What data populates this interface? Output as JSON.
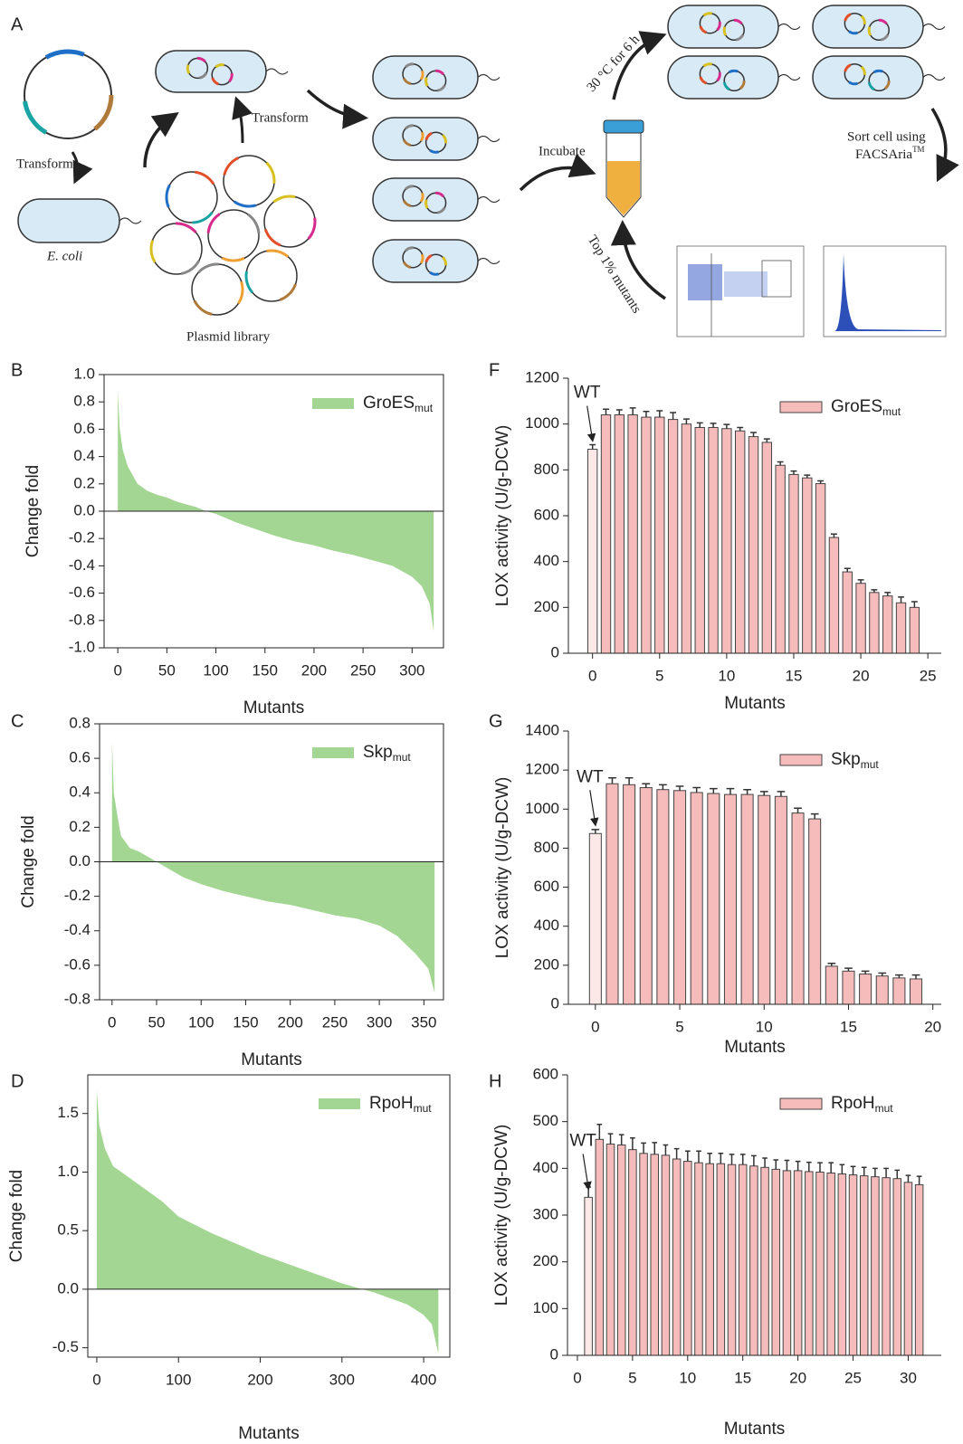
{
  "diagram": {
    "panel_label": "A",
    "transform_1": "Transform",
    "host": "E. coli",
    "transform_2": "Transform",
    "library": "Plasmid library",
    "incubate": "Incubate",
    "culture": "30 °C for 6 h",
    "sort_line1": "Sort cell using",
    "sort_line2": "FACSAria",
    "sort_trademark": "TM",
    "select": "Top 1% mutants"
  },
  "chart_data": [
    {
      "type": "area",
      "panel_label": "B",
      "xlabel": "Mutants",
      "ylabel": "Change fold",
      "x": [
        0,
        2,
        5,
        10,
        20,
        30,
        40,
        50,
        60,
        70,
        80,
        90,
        100,
        120,
        140,
        160,
        180,
        200,
        220,
        240,
        260,
        280,
        300,
        310,
        318,
        322
      ],
      "series": [
        {
          "name": "GroES",
          "name_subscript": "mut",
          "color": "#a3d693",
          "values": [
            0.88,
            0.6,
            0.45,
            0.33,
            0.2,
            0.15,
            0.12,
            0.1,
            0.07,
            0.05,
            0.03,
            0.0,
            -0.02,
            -0.08,
            -0.13,
            -0.18,
            -0.22,
            -0.25,
            -0.29,
            -0.32,
            -0.36,
            -0.4,
            -0.48,
            -0.55,
            -0.68,
            -0.88
          ]
        }
      ],
      "xlim": [
        -14,
        332
      ],
      "xticks": [
        0,
        50,
        100,
        150,
        200,
        250,
        300
      ],
      "ylim": [
        -1.0,
        1.0
      ],
      "yticks": [
        {
          "value": -1.0,
          "label": "-1.0"
        },
        -0.8,
        -0.6,
        -0.4,
        -0.2,
        {
          "value": 0.0,
          "label": "0.0"
        },
        0.2,
        0.4,
        0.6,
        0.8,
        {
          "value": 1.0,
          "label": "1.0"
        }
      ],
      "legend": "upper right"
    },
    {
      "type": "bar",
      "panel_label": "F",
      "xlabel": "Mutants",
      "ylabel": "LOX activity (U/g-DCW)",
      "annotation": "WT",
      "x": [
        0,
        1,
        2,
        3,
        4,
        5,
        6,
        7,
        8,
        9,
        10,
        11,
        12,
        13,
        14,
        15,
        16,
        17,
        18,
        19,
        20,
        21,
        22,
        23,
        24
      ],
      "series": [
        {
          "name": "GroES",
          "name_subscript": "mut",
          "color": "#f6bcbc",
          "values": [
            890,
            1040,
            1040,
            1040,
            1030,
            1030,
            1020,
            1000,
            985,
            985,
            980,
            970,
            945,
            920,
            820,
            780,
            765,
            740,
            505,
            355,
            305,
            265,
            250,
            220,
            200
          ],
          "errors": [
            20,
            25,
            22,
            30,
            25,
            28,
            30,
            22,
            20,
            18,
            18,
            15,
            18,
            15,
            15,
            15,
            12,
            12,
            15,
            15,
            15,
            12,
            15,
            25,
            25
          ]
        }
      ],
      "xlim": [
        -1.8,
        26
      ],
      "xticks": [
        0,
        5,
        10,
        15,
        20,
        25
      ],
      "ylim": [
        0,
        1200
      ],
      "yticks": [
        0,
        200,
        400,
        600,
        800,
        1000,
        1200
      ],
      "legend": "upper right"
    },
    {
      "type": "area",
      "panel_label": "C",
      "xlabel": "Mutants",
      "ylabel": "Change fold",
      "x": [
        0,
        2,
        5,
        10,
        20,
        30,
        40,
        50,
        60,
        80,
        100,
        125,
        150,
        175,
        200,
        225,
        250,
        275,
        300,
        320,
        340,
        355,
        362
      ],
      "series": [
        {
          "name": "Skp",
          "name_subscript": "mut",
          "color": "#a3d693",
          "values": [
            0.7,
            0.4,
            0.3,
            0.15,
            0.08,
            0.06,
            0.03,
            0.0,
            -0.03,
            -0.09,
            -0.13,
            -0.17,
            -0.2,
            -0.23,
            -0.25,
            -0.28,
            -0.31,
            -0.33,
            -0.37,
            -0.43,
            -0.53,
            -0.62,
            -0.76
          ]
        }
      ],
      "xlim": [
        -14,
        372
      ],
      "xticks": [
        0,
        50,
        100,
        150,
        200,
        250,
        300,
        350
      ],
      "ylim": [
        -0.8,
        0.8
      ],
      "yticks": [
        -0.8,
        -0.6,
        -0.4,
        -0.2,
        {
          "value": 0.0,
          "label": "0.0"
        },
        0.2,
        0.4,
        0.6,
        0.8
      ],
      "legend": "upper right"
    },
    {
      "type": "bar",
      "panel_label": "G",
      "xlabel": "Mutants",
      "ylabel": "LOX activity (U/g-DCW)",
      "annotation": "WT",
      "x": [
        0,
        1,
        2,
        3,
        4,
        5,
        6,
        7,
        8,
        9,
        10,
        11,
        12,
        13,
        14,
        15,
        16,
        17,
        18,
        19
      ],
      "series": [
        {
          "name": "Skp",
          "name_subscript": "mut",
          "color": "#f6bcbc",
          "values": [
            875,
            1130,
            1125,
            1110,
            1100,
            1095,
            1085,
            1080,
            1075,
            1075,
            1070,
            1065,
            980,
            950,
            195,
            170,
            155,
            145,
            135,
            130
          ],
          "errors": [
            20,
            30,
            35,
            20,
            25,
            22,
            25,
            25,
            30,
            25,
            20,
            25,
            25,
            25,
            15,
            15,
            15,
            15,
            15,
            20
          ]
        }
      ],
      "xlim": [
        -1.6,
        20.5
      ],
      "xticks": [
        0,
        5,
        10,
        15,
        20
      ],
      "ylim": [
        0,
        1400
      ],
      "yticks": [
        0,
        200,
        400,
        600,
        800,
        1000,
        1200,
        1400
      ],
      "legend": "upper right"
    },
    {
      "type": "area",
      "panel_label": "D",
      "xlabel": "Mutants",
      "ylabel": "Change fold",
      "x": [
        0,
        3,
        10,
        20,
        40,
        60,
        80,
        100,
        120,
        140,
        160,
        180,
        200,
        220,
        240,
        260,
        280,
        300,
        320,
        340,
        360,
        380,
        400,
        410,
        418
      ],
      "series": [
        {
          "name": "RpoH",
          "name_subscript": "mut",
          "color": "#a3d693",
          "values": [
            1.7,
            1.4,
            1.2,
            1.05,
            0.95,
            0.85,
            0.75,
            0.62,
            0.55,
            0.48,
            0.42,
            0.36,
            0.3,
            0.25,
            0.2,
            0.15,
            0.1,
            0.05,
            0.01,
            -0.03,
            -0.08,
            -0.13,
            -0.22,
            -0.3,
            -0.55
          ]
        }
      ],
      "xlim": [
        -11,
        432
      ],
      "xticks": [
        0,
        100,
        200,
        300,
        400
      ],
      "ylim": [
        -0.58,
        1.83
      ],
      "yticks": [
        -0.5,
        {
          "value": 0.0,
          "label": "0.0"
        },
        0.5,
        {
          "value": 1.0,
          "label": "1.0"
        },
        1.5
      ],
      "legend": "upper right"
    },
    {
      "type": "bar",
      "panel_label": "H",
      "xlabel": "Mutants",
      "ylabel": "LOX activity (U/g-DCW)",
      "annotation": "WT",
      "x": [
        1,
        2,
        3,
        4,
        5,
        6,
        7,
        8,
        9,
        10,
        11,
        12,
        13,
        14,
        15,
        16,
        17,
        18,
        19,
        20,
        21,
        22,
        23,
        24,
        25,
        26,
        27,
        28,
        29,
        30,
        31
      ],
      "series": [
        {
          "name": "RpoH",
          "name_subscript": "mut",
          "color": "#f6bcbc",
          "values": [
            338,
            462,
            452,
            450,
            440,
            432,
            430,
            428,
            420,
            415,
            412,
            410,
            410,
            408,
            408,
            405,
            402,
            398,
            395,
            395,
            393,
            392,
            390,
            388,
            386,
            384,
            382,
            380,
            378,
            370,
            365
          ],
          "errors": [
            22,
            32,
            22,
            22,
            25,
            22,
            25,
            22,
            22,
            22,
            25,
            22,
            22,
            22,
            22,
            22,
            20,
            20,
            22,
            20,
            20,
            20,
            22,
            20,
            18,
            18,
            18,
            20,
            18,
            15,
            18
          ]
        }
      ],
      "xlim": [
        -0.9,
        33
      ],
      "xticks": [
        0,
        5,
        10,
        15,
        20,
        25,
        30
      ],
      "ylim": [
        0,
        600
      ],
      "yticks": [
        0,
        100,
        200,
        300,
        400,
        500,
        600
      ],
      "legend": "upper right"
    }
  ]
}
